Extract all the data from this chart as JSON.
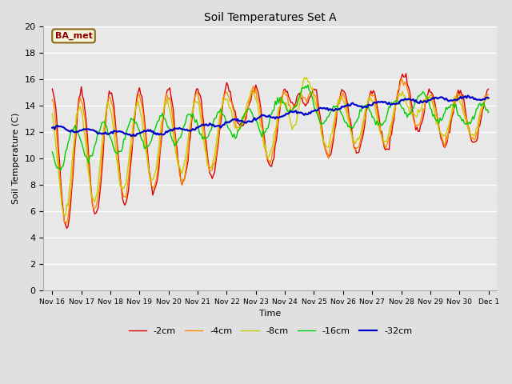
{
  "title": "Soil Temperatures Set A",
  "xlabel": "Time",
  "ylabel": "Soil Temperature (C)",
  "ylim": [
    0,
    20
  ],
  "yticks": [
    0,
    2,
    4,
    6,
    8,
    10,
    12,
    14,
    16,
    18,
    20
  ],
  "background_color": "#e0e0e0",
  "plot_background": "#e8e8e8",
  "grid_color": "#ffffff",
  "annotation_text": "BA_met",
  "annotation_color": "#8b0000",
  "annotation_bg": "#f5f5dc",
  "annotation_edge": "#8b6914",
  "series_colors": {
    "-2cm": "#dd0000",
    "-4cm": "#ff8c00",
    "-8cm": "#cccc00",
    "-16cm": "#00cc00",
    "-32cm": "#0000cc"
  },
  "date_labels": [
    "Nov 16",
    "Nov 17",
    "Nov 18",
    "Nov 19",
    "Nov 20",
    "Nov 21",
    "Nov 22",
    "Nov 23",
    "Nov 24",
    "Nov 25",
    "Nov 26",
    "Nov 27",
    "Nov 28",
    "Nov 29",
    "Nov 30",
    "Dec 1"
  ]
}
